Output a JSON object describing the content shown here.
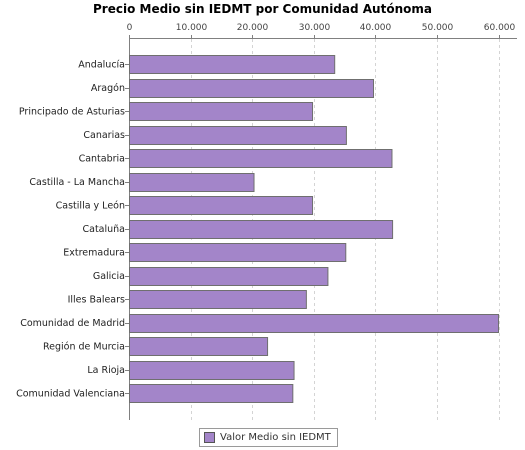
{
  "chart_data": {
    "type": "bar",
    "orientation": "horizontal",
    "title": "Precio Medio sin IEDMT por Comunidad Autónoma",
    "xlabel": "",
    "ylabel": "",
    "xlim": [
      0,
      63000
    ],
    "x_axis_position": "top",
    "x_ticks": [
      0,
      10000,
      20000,
      30000,
      40000,
      50000,
      60000
    ],
    "x_tick_labels": [
      "0",
      "10.000",
      "20.000",
      "30.000",
      "40.000",
      "50.000",
      "60.000"
    ],
    "grid": "vertical dashed",
    "legend_position": "bottom",
    "categories": [
      "Andalucía",
      "Aragón",
      "Principado de Asturias",
      "Canarias",
      "Cantabria",
      "Castilla - La Mancha",
      "Castilla y León",
      "Cataluña",
      "Extremadura",
      "Galicia",
      "Illes Balears",
      "Comunidad de Madrid",
      "Región de Murcia",
      "La Rioja",
      "Comunidad Valenciana"
    ],
    "series": [
      {
        "name": "Valor Medio sin IEDMT",
        "color": "#a385c9",
        "values": [
          33400,
          39700,
          29800,
          35300,
          42700,
          20300,
          29800,
          42800,
          35200,
          32300,
          28800,
          60000,
          22500,
          26800,
          26600
        ]
      }
    ]
  }
}
